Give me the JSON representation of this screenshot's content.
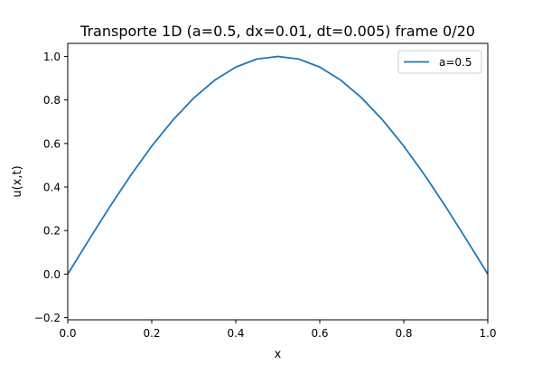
{
  "chart_data": {
    "type": "line",
    "title": "Transporte 1D (a=0.5, dx=0.01, dt=0.005) frame 0/20",
    "xlabel": "x",
    "ylabel": "u(x,t)",
    "xlim": [
      0.0,
      1.0
    ],
    "ylim": [
      -0.21,
      1.06
    ],
    "xticks": [
      0.0,
      0.2,
      0.4,
      0.6,
      0.8,
      1.0
    ],
    "xtick_labels": [
      "0.0",
      "0.2",
      "0.4",
      "0.6",
      "0.8",
      "1.0"
    ],
    "yticks": [
      -0.2,
      0.0,
      0.2,
      0.4,
      0.6,
      0.8,
      1.0
    ],
    "ytick_labels": [
      "−0.2",
      "0.0",
      "0.2",
      "0.4",
      "0.6",
      "0.8",
      "1.0"
    ],
    "grid": false,
    "legend_position": "top-right",
    "series": [
      {
        "name": "a=0.5",
        "color": "#1f77b4",
        "x": [
          0.0,
          0.05,
          0.1,
          0.15,
          0.2,
          0.25,
          0.3,
          0.35,
          0.4,
          0.45,
          0.5,
          0.55,
          0.6,
          0.65,
          0.7,
          0.75,
          0.8,
          0.85,
          0.9,
          0.95,
          1.0
        ],
        "y": [
          0.0,
          0.156,
          0.309,
          0.454,
          0.588,
          0.707,
          0.809,
          0.891,
          0.951,
          0.988,
          1.0,
          0.988,
          0.951,
          0.891,
          0.809,
          0.707,
          0.588,
          0.454,
          0.309,
          0.156,
          0.0
        ]
      }
    ]
  }
}
